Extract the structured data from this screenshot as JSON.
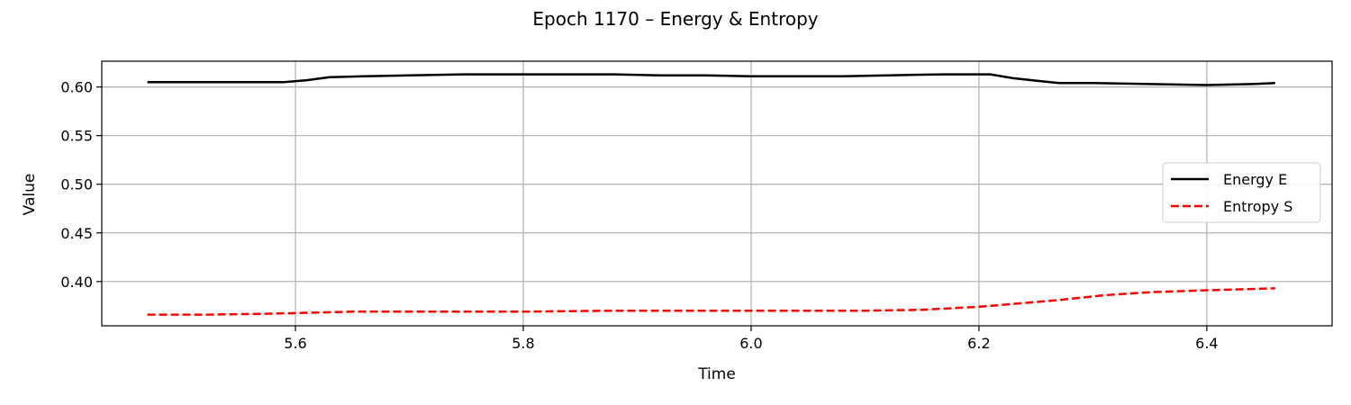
{
  "chart_data": {
    "type": "line",
    "title": "Epoch 1170 – Energy & Entropy",
    "xlabel": "Time",
    "ylabel": "Value",
    "xlim": [
      5.43,
      6.51
    ],
    "ylim": [
      0.3545,
      0.6265
    ],
    "xticks": [
      5.6,
      5.8,
      6.0,
      6.2,
      6.4
    ],
    "xtick_labels": [
      "5.6",
      "5.8",
      "6.0",
      "6.2",
      "6.4"
    ],
    "yticks": [
      0.4,
      0.45,
      0.5,
      0.55,
      0.6
    ],
    "ytick_labels": [
      "0.40",
      "0.45",
      "0.50",
      "0.55",
      "0.60"
    ],
    "grid": true,
    "legend_position": "center-right",
    "series": [
      {
        "name": "Energy E",
        "color": "#000000",
        "style": "solid",
        "x": [
          5.47,
          5.52,
          5.56,
          5.59,
          5.61,
          5.63,
          5.66,
          5.7,
          5.75,
          5.8,
          5.84,
          5.88,
          5.92,
          5.96,
          6.0,
          6.04,
          6.08,
          6.12,
          6.17,
          6.21,
          6.23,
          6.27,
          6.3,
          6.35,
          6.4,
          6.44,
          6.46
        ],
        "y": [
          0.605,
          0.605,
          0.605,
          0.605,
          0.607,
          0.61,
          0.611,
          0.612,
          0.613,
          0.613,
          0.613,
          0.613,
          0.612,
          0.612,
          0.611,
          0.611,
          0.611,
          0.612,
          0.613,
          0.613,
          0.609,
          0.604,
          0.604,
          0.603,
          0.602,
          0.603,
          0.604
        ]
      },
      {
        "name": "Entropy S",
        "color": "#ff0000",
        "style": "dashed",
        "x": [
          5.47,
          5.52,
          5.58,
          5.65,
          5.72,
          5.8,
          5.88,
          5.96,
          6.04,
          6.1,
          6.15,
          6.2,
          6.23,
          6.27,
          6.31,
          6.35,
          6.4,
          6.46
        ],
        "y": [
          0.366,
          0.366,
          0.367,
          0.369,
          0.369,
          0.369,
          0.37,
          0.37,
          0.37,
          0.37,
          0.371,
          0.374,
          0.377,
          0.381,
          0.386,
          0.389,
          0.391,
          0.393
        ]
      }
    ]
  }
}
